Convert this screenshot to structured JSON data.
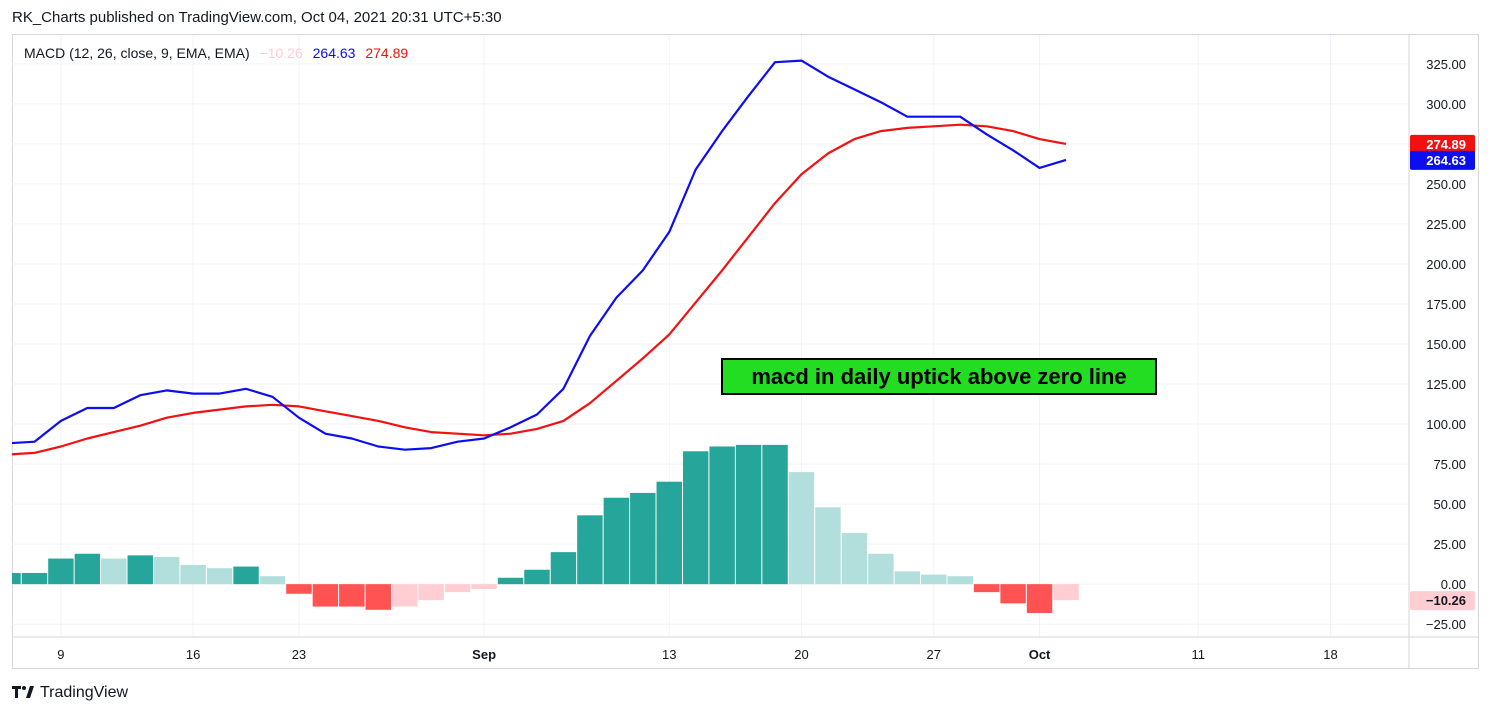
{
  "header": {
    "text": "RK_Charts published on TradingView.com, Oct 04, 2021 20:31 UTC+5:30"
  },
  "footer": {
    "logo_icon": "tradingview-logo-icon",
    "brand": "TradingView"
  },
  "colors": {
    "macd_line": "#0d0df2",
    "signal_line": "#f21111",
    "hist_pos_strong": "#26a69a",
    "hist_pos_weak": "#b2dfdb",
    "hist_neg_strong": "#ff5252",
    "hist_neg_weak": "#ffcdd2",
    "annotation_bg": "#22dd22"
  },
  "chart_data": {
    "type": "line",
    "indicator": "MACD (12, 26, close, 9, EMA, EMA)",
    "legend": {
      "label": "MACD (12, 26, close, 9, EMA, EMA)",
      "hist_value": "−10.26",
      "macd_value": "264.63",
      "signal_value": "274.89"
    },
    "y_ticks": [
      "325.00",
      "300.00",
      "275.00",
      "250.00",
      "225.00",
      "200.00",
      "175.00",
      "150.00",
      "125.00",
      "100.00",
      "75.00",
      "50.00",
      "25.00",
      "0.00",
      "−25.00"
    ],
    "y_tick_values": [
      325,
      300,
      275,
      250,
      225,
      200,
      175,
      150,
      125,
      100,
      75,
      50,
      25,
      0,
      -25
    ],
    "ylim": [
      -33,
      343
    ],
    "x_ticks": [
      {
        "label": "9",
        "index": 2,
        "bold": false
      },
      {
        "label": "16",
        "index": 7,
        "bold": false
      },
      {
        "label": "23",
        "index": 11,
        "bold": false
      },
      {
        "label": "Sep",
        "index": 18,
        "bold": true
      },
      {
        "label": "13",
        "index": 25,
        "bold": false
      },
      {
        "label": "20",
        "index": 30,
        "bold": false
      },
      {
        "label": "27",
        "index": 35,
        "bold": false
      },
      {
        "label": "Oct",
        "index": 39,
        "bold": true
      },
      {
        "label": "11",
        "index": 45,
        "bold": false
      },
      {
        "label": "18",
        "index": 50,
        "bold": false
      }
    ],
    "series": [
      {
        "name": "MACD",
        "values": [
          88,
          89,
          102,
          110,
          110,
          118,
          121,
          119,
          119,
          122,
          117,
          104,
          94,
          91,
          86,
          84,
          85,
          89,
          91,
          98,
          106,
          122,
          155,
          179,
          196,
          220,
          259,
          283,
          305,
          326,
          327,
          317,
          309,
          301,
          292,
          292,
          292,
          281,
          271,
          260,
          265
        ]
      },
      {
        "name": "Signal",
        "values": [
          81,
          82,
          86,
          91,
          95,
          99,
          104,
          107,
          109,
          111,
          112,
          111,
          108,
          105,
          102,
          98,
          95,
          94,
          93,
          94,
          97,
          102,
          113,
          127,
          141,
          156,
          176,
          196,
          217,
          238,
          256,
          269,
          278,
          283,
          285,
          286,
          287,
          286,
          283,
          278,
          275
        ]
      },
      {
        "name": "Histogram",
        "values": [
          7,
          7,
          16,
          19,
          16,
          18,
          17,
          12,
          10,
          11,
          5,
          -6,
          -14,
          -14,
          -16,
          -14,
          -10,
          -5,
          -3,
          4,
          9,
          20,
          43,
          54,
          57,
          64,
          83,
          86,
          87,
          87,
          70,
          48,
          32,
          19,
          8,
          6,
          5,
          -5,
          -12,
          -18,
          -10
        ]
      }
    ],
    "last_labels": [
      {
        "series": "Signal",
        "text": "274.89"
      },
      {
        "series": "MACD",
        "text": "264.63"
      },
      {
        "series": "Histogram",
        "text": "−10.26"
      }
    ],
    "annotation": "macd in daily uptick above zero line"
  }
}
